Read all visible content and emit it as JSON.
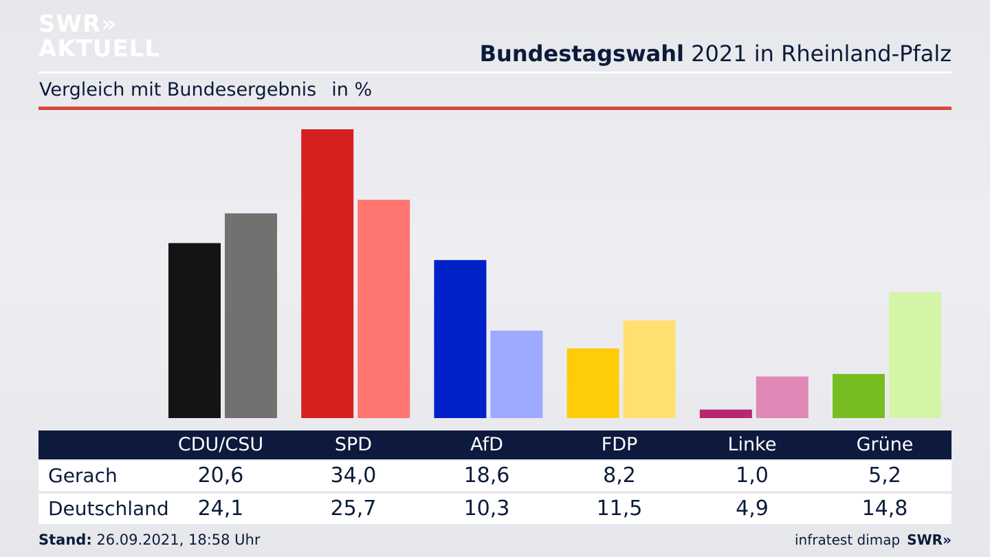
{
  "brand": {
    "line1": "SWR»",
    "line2": "AKTUELL"
  },
  "header": {
    "title_bold": "Bundestagswahl",
    "title_rest": " 2021 in Rheinland-Pfalz"
  },
  "subtitle": {
    "text": "Vergleich mit Bundesergebnis",
    "unit": "in %"
  },
  "chart_data": {
    "type": "bar",
    "categories": [
      "CDU/CSU",
      "SPD",
      "AfD",
      "FDP",
      "Linke",
      "Grüne"
    ],
    "series": [
      {
        "name": "Gerach",
        "values": [
          20.6,
          34.0,
          18.6,
          8.2,
          1.0,
          5.2
        ]
      },
      {
        "name": "Deutschland",
        "values": [
          24.1,
          25.7,
          10.3,
          11.5,
          4.9,
          14.8
        ]
      }
    ],
    "colors": {
      "series1": [
        "#141414",
        "#d61f1f",
        "#0021c8",
        "#ffcc0a",
        "#b7286e",
        "#76bd22"
      ],
      "series2": [
        "#737170",
        "#ff7570",
        "#9eaaff",
        "#ffe070",
        "#e088b6",
        "#d4f4a6"
      ]
    },
    "ylim": [
      0,
      34.0
    ],
    "grid": false,
    "legend": "table-below"
  },
  "table": {
    "headers": [
      "CDU/CSU",
      "SPD",
      "AfD",
      "FDP",
      "Linke",
      "Grüne"
    ],
    "rows": [
      {
        "label": "Gerach",
        "cells": [
          "20,6",
          "34,0",
          "18,6",
          "8,2",
          "1,0",
          "5,2"
        ]
      },
      {
        "label": "Deutschland",
        "cells": [
          "24,1",
          "25,7",
          "10,3",
          "11,5",
          "4,9",
          "14,8"
        ]
      }
    ]
  },
  "footer": {
    "stand_label": "Stand:",
    "stand_value": " 26.09.2021, 18:58 Uhr",
    "source": "infratest dimap",
    "brand": "SWR»"
  }
}
